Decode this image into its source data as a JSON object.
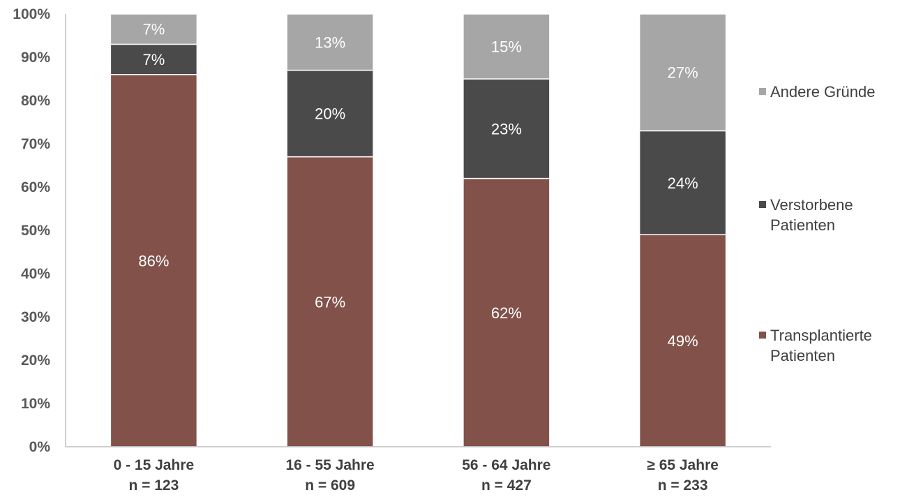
{
  "chart_data": {
    "type": "bar",
    "stacked": true,
    "title": "",
    "xlabel": "",
    "ylabel": "",
    "ylim": [
      0,
      100
    ],
    "yticks": [
      "0%",
      "10%",
      "20%",
      "30%",
      "40%",
      "50%",
      "60%",
      "70%",
      "80%",
      "90%",
      "100%"
    ],
    "categories": [
      {
        "line1": "0 - 15 Jahre",
        "line2": "n = 123"
      },
      {
        "line1": "16 - 55 Jahre",
        "line2": "n = 609"
      },
      {
        "line1": "56 - 64 Jahre",
        "line2": "n = 427"
      },
      {
        "line1": "≥ 65 Jahre",
        "line2": "n = 233"
      }
    ],
    "series": [
      {
        "name": "Transplantierte Patienten",
        "name_lines": [
          "Transplantierte",
          "Patienten"
        ],
        "color": "#82514a",
        "values": [
          86,
          67,
          62,
          49
        ],
        "labels": [
          "86%",
          "67%",
          "62%",
          "49%"
        ]
      },
      {
        "name": "Verstorbene Patienten",
        "name_lines": [
          "Verstorbene",
          "Patienten"
        ],
        "color": "#4a4a4a",
        "values": [
          7,
          20,
          23,
          24
        ],
        "labels": [
          "7%",
          "20%",
          "23%",
          "24%"
        ]
      },
      {
        "name": "Andere Gründe",
        "name_lines": [
          "Andere Gründe"
        ],
        "color": "#a6a6a6",
        "values": [
          7,
          13,
          15,
          27
        ],
        "labels": [
          "7%",
          "13%",
          "15%",
          "27%"
        ]
      }
    ],
    "legend_position": "right",
    "grid": false
  }
}
